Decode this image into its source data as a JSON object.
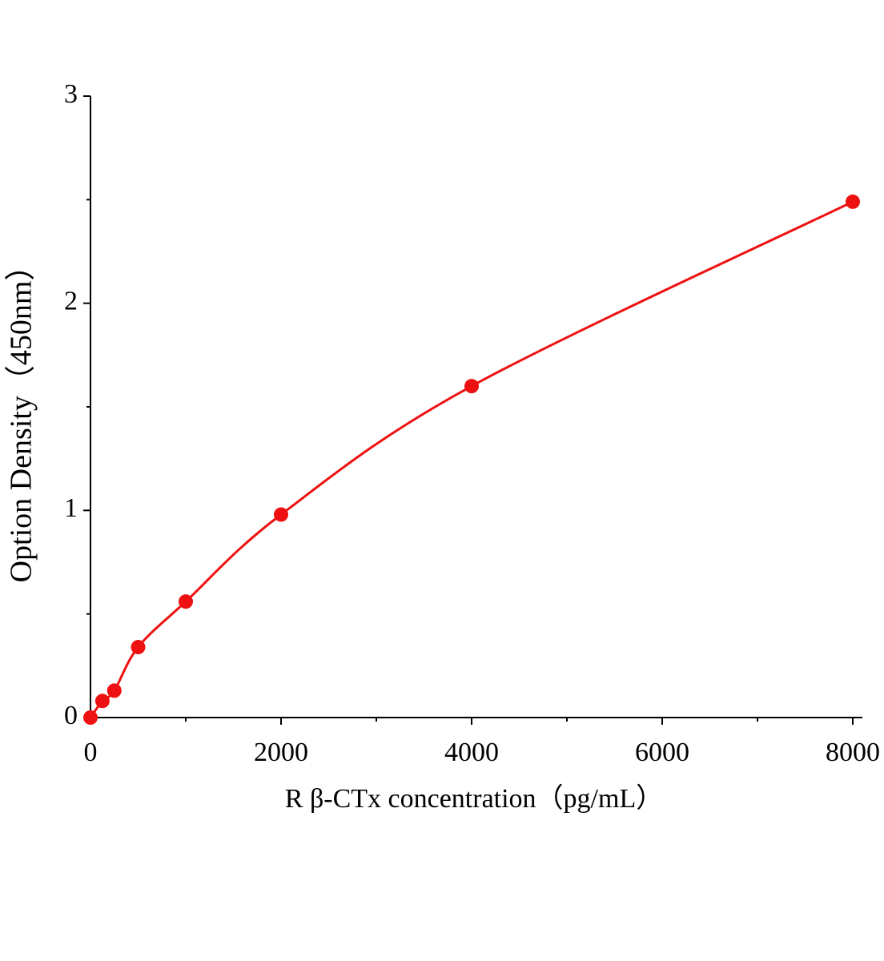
{
  "chart_data": {
    "type": "scatter",
    "x_label": "R β-CTx concentration（pg/mL）",
    "y_label": "Option Density（450nm）",
    "x": [
      0,
      125,
      250,
      500,
      1000,
      2000,
      4000,
      8000
    ],
    "values": [
      0,
      0.08,
      0.13,
      0.34,
      0.56,
      0.98,
      1.6,
      2.49
    ],
    "color": "#ee1111",
    "fit_line": true,
    "xlim": [
      0,
      8000
    ],
    "xticks": [
      0,
      2000,
      4000,
      6000,
      8000
    ],
    "x_minor_ticks": [
      1000,
      3000,
      5000,
      7000
    ],
    "ylim": [
      0,
      3
    ],
    "yticks": [
      0,
      1,
      2,
      3
    ],
    "y_minor_ticks": [
      0.5,
      1.5,
      2.5
    ],
    "grid": false
  }
}
